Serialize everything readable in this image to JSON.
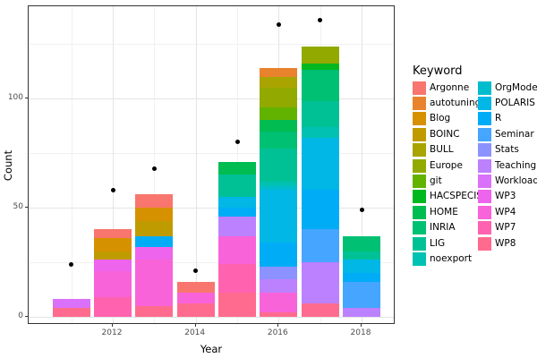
{
  "chart_data": {
    "type": "bar",
    "stacked": true,
    "title": "",
    "xlabel": "Year",
    "ylabel": "Count",
    "legend_title": "Keyword",
    "legend_position": "right",
    "grid": true,
    "x_major_ticks": [
      2012,
      2014,
      2016,
      2018
    ],
    "x_minor_ticks": [
      2011,
      2013,
      2015,
      2017
    ],
    "y_major_ticks": [
      0,
      50,
      100
    ],
    "y_minor_ticks": [
      25,
      75,
      125
    ],
    "ylim": [
      0,
      142
    ],
    "years": [
      2011,
      2012,
      2013,
      2014,
      2015,
      2016,
      2017,
      2018
    ],
    "keywords": [
      {
        "name": "Argonne",
        "color": "#F8766D"
      },
      {
        "name": "autotuning",
        "color": "#E9822D"
      },
      {
        "name": "Blog",
        "color": "#D69100"
      },
      {
        "name": "BOINC",
        "color": "#C09B00"
      },
      {
        "name": "BULL",
        "color": "#A9A400"
      },
      {
        "name": "Europe",
        "color": "#92AA00"
      },
      {
        "name": "git",
        "color": "#62B200"
      },
      {
        "name": "HACSPECIS",
        "color": "#00B81F"
      },
      {
        "name": "HOME",
        "color": "#00BC51"
      },
      {
        "name": "INRIA",
        "color": "#00C074"
      },
      {
        "name": "LIG",
        "color": "#00C196"
      },
      {
        "name": "noexport",
        "color": "#00C1B2"
      },
      {
        "name": "OrgMode",
        "color": "#00BDCD"
      },
      {
        "name": "POLARIS",
        "color": "#00B7E6"
      },
      {
        "name": "R",
        "color": "#00ACF6"
      },
      {
        "name": "Seminar",
        "color": "#45A5FF"
      },
      {
        "name": "Stats",
        "color": "#8C92FF"
      },
      {
        "name": "Teaching",
        "color": "#BC81FF"
      },
      {
        "name": "Workload",
        "color": "#DA71FA"
      },
      {
        "name": "WP3",
        "color": "#EE64EC"
      },
      {
        "name": "WP4",
        "color": "#F863D9"
      },
      {
        "name": "WP7",
        "color": "#FF63B0"
      },
      {
        "name": "WP8",
        "color": "#FF6B8E"
      }
    ],
    "bars": [
      {
        "year": 2011,
        "total": 8,
        "segments_top_to_bottom": [
          {
            "keyword": "Workload",
            "value": 4
          },
          {
            "keyword": "WP8",
            "value": 4
          }
        ]
      },
      {
        "year": 2012,
        "total": 40,
        "segments_top_to_bottom": [
          {
            "keyword": "Argonne",
            "value": 4
          },
          {
            "keyword": "Blog",
            "value": 6
          },
          {
            "keyword": "BOINC",
            "value": 4
          },
          {
            "keyword": "WP3",
            "value": 5
          },
          {
            "keyword": "WP4",
            "value": 12
          },
          {
            "keyword": "WP7",
            "value": 9
          }
        ]
      },
      {
        "year": 2013,
        "total": 56,
        "segments_top_to_bottom": [
          {
            "keyword": "Argonne",
            "value": 6
          },
          {
            "keyword": "Blog",
            "value": 6
          },
          {
            "keyword": "BOINC",
            "value": 7
          },
          {
            "keyword": "R",
            "value": 5
          },
          {
            "keyword": "WP3",
            "value": 6
          },
          {
            "keyword": "WP4",
            "value": 21
          },
          {
            "keyword": "WP8",
            "value": 5
          }
        ]
      },
      {
        "year": 2014,
        "total": 16,
        "segments_top_to_bottom": [
          {
            "keyword": "Argonne",
            "value": 5
          },
          {
            "keyword": "WP4",
            "value": 5
          },
          {
            "keyword": "WP8",
            "value": 6
          }
        ]
      },
      {
        "year": 2015,
        "total": 71,
        "segments_top_to_bottom": [
          {
            "keyword": "HOME",
            "value": 6
          },
          {
            "keyword": "LIG",
            "value": 10
          },
          {
            "keyword": "POLARIS",
            "value": 5
          },
          {
            "keyword": "R",
            "value": 4
          },
          {
            "keyword": "Teaching",
            "value": 9
          },
          {
            "keyword": "WP4",
            "value": 13
          },
          {
            "keyword": "WP7",
            "value": 13
          },
          {
            "keyword": "WP8",
            "value": 11
          }
        ]
      },
      {
        "year": 2016,
        "total": 114,
        "segments_top_to_bottom": [
          {
            "keyword": "autotuning",
            "value": 4
          },
          {
            "keyword": "BULL",
            "value": 5
          },
          {
            "keyword": "Europe",
            "value": 9
          },
          {
            "keyword": "git",
            "value": 6
          },
          {
            "keyword": "HOME",
            "value": 5
          },
          {
            "keyword": "INRIA",
            "value": 8
          },
          {
            "keyword": "LIG",
            "value": 15
          },
          {
            "keyword": "noexport",
            "value": 2
          },
          {
            "keyword": "OrgMode",
            "value": 2
          },
          {
            "keyword": "POLARIS",
            "value": 24
          },
          {
            "keyword": "R",
            "value": 11
          },
          {
            "keyword": "Stats",
            "value": 6
          },
          {
            "keyword": "Teaching",
            "value": 6
          },
          {
            "keyword": "WP4",
            "value": 9
          },
          {
            "keyword": "WP8",
            "value": 2
          }
        ]
      },
      {
        "year": 2017,
        "total": 124,
        "segments_top_to_bottom": [
          {
            "keyword": "Europe",
            "value": 8
          },
          {
            "keyword": "HACSPECIS",
            "value": 3
          },
          {
            "keyword": "INRIA",
            "value": 14
          },
          {
            "keyword": "LIG",
            "value": 12
          },
          {
            "keyword": "noexport",
            "value": 5
          },
          {
            "keyword": "POLARIS",
            "value": 24
          },
          {
            "keyword": "R",
            "value": 18
          },
          {
            "keyword": "Seminar",
            "value": 15
          },
          {
            "keyword": "Teaching",
            "value": 19
          },
          {
            "keyword": "WP8",
            "value": 6
          }
        ]
      },
      {
        "year": 2018,
        "total": 37,
        "segments_top_to_bottom": [
          {
            "keyword": "INRIA",
            "value": 7
          },
          {
            "keyword": "LIG",
            "value": 4
          },
          {
            "keyword": "POLARIS",
            "value": 6
          },
          {
            "keyword": "R",
            "value": 4
          },
          {
            "keyword": "Seminar",
            "value": 12
          },
          {
            "keyword": "Teaching",
            "value": 4
          }
        ]
      }
    ],
    "points_total_dots": [
      {
        "year": 2011,
        "value": 24
      },
      {
        "year": 2012,
        "value": 58
      },
      {
        "year": 2013,
        "value": 68
      },
      {
        "year": 2014,
        "value": 21
      },
      {
        "year": 2015,
        "value": 80
      },
      {
        "year": 2016,
        "value": 134
      },
      {
        "year": 2017,
        "value": 136
      },
      {
        "year": 2018,
        "value": 49
      }
    ]
  }
}
